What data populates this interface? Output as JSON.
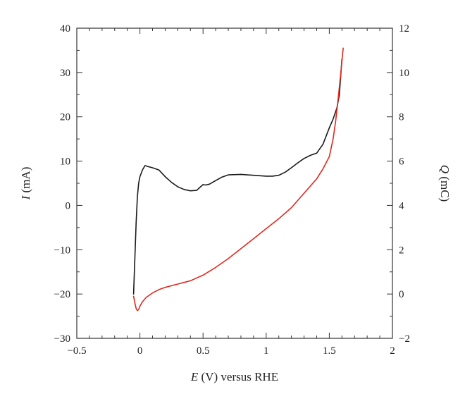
{
  "chart_data": {
    "type": "line",
    "xlabel_var": "E",
    "xlabel_rest": " (V) versus RHE",
    "ylabel_var": "I",
    "ylabel_rest": " (mA)",
    "y2label_var": "Q",
    "y2label_rest": " (mC)",
    "xlim": [
      -0.5,
      2
    ],
    "ylim": [
      -30,
      40
    ],
    "y2lim": [
      -2,
      12
    ],
    "x_ticks": [
      -0.5,
      0,
      0.5,
      1,
      1.5,
      2
    ],
    "x_tick_labels": [
      "−0.5",
      "0",
      "0.5",
      "1",
      "1.5",
      "2"
    ],
    "y_ticks": [
      -30,
      -20,
      -10,
      0,
      10,
      20,
      30,
      40
    ],
    "y_tick_labels": [
      "−30",
      "−20",
      "−10",
      "0",
      "10",
      "20",
      "30",
      "40"
    ],
    "y2_ticks": [
      -2,
      0,
      2,
      4,
      6,
      8,
      10,
      12
    ],
    "y2_tick_labels": [
      "−2",
      "0",
      "2",
      "4",
      "6",
      "8",
      "10",
      "12"
    ],
    "grid": false,
    "legend": "none",
    "series": [
      {
        "axis": "left",
        "color": "#1a1a1a",
        "x": [
          -0.05,
          -0.04,
          -0.03,
          -0.02,
          -0.01,
          0.0,
          0.02,
          0.04,
          0.06,
          0.1,
          0.15,
          0.2,
          0.25,
          0.3,
          0.35,
          0.4,
          0.45,
          0.48,
          0.5,
          0.52,
          0.55,
          0.6,
          0.65,
          0.7,
          0.8,
          0.9,
          1.0,
          1.05,
          1.1,
          1.15,
          1.2,
          1.25,
          1.3,
          1.35,
          1.4,
          1.45,
          1.5,
          1.53,
          1.56,
          1.58,
          1.6
        ],
        "y": [
          -20,
          -12,
          -4,
          2,
          5,
          6.5,
          8,
          9,
          8.8,
          8.5,
          8.0,
          6.5,
          5.2,
          4.2,
          3.6,
          3.3,
          3.4,
          4.2,
          4.7,
          4.6,
          4.8,
          5.6,
          6.4,
          6.9,
          7.0,
          6.8,
          6.6,
          6.6,
          6.8,
          7.5,
          8.5,
          9.6,
          10.6,
          11.3,
          11.8,
          13.8,
          17.5,
          19.5,
          22,
          25,
          33
        ]
      },
      {
        "axis": "right",
        "color": "#e0281e",
        "x": [
          -0.05,
          -0.04,
          -0.03,
          -0.02,
          -0.01,
          0.0,
          0.02,
          0.05,
          0.1,
          0.15,
          0.2,
          0.3,
          0.4,
          0.5,
          0.6,
          0.7,
          0.8,
          0.9,
          1.0,
          1.1,
          1.2,
          1.3,
          1.4,
          1.45,
          1.5,
          1.53,
          1.55,
          1.57,
          1.59,
          1.61
        ],
        "y": [
          -0.1,
          -0.4,
          -0.65,
          -0.75,
          -0.7,
          -0.55,
          -0.35,
          -0.15,
          0.05,
          0.2,
          0.3,
          0.45,
          0.6,
          0.85,
          1.2,
          1.6,
          2.05,
          2.5,
          2.95,
          3.4,
          3.9,
          4.55,
          5.2,
          5.65,
          6.2,
          7.0,
          7.8,
          8.8,
          9.9,
          11.1
        ]
      }
    ]
  }
}
